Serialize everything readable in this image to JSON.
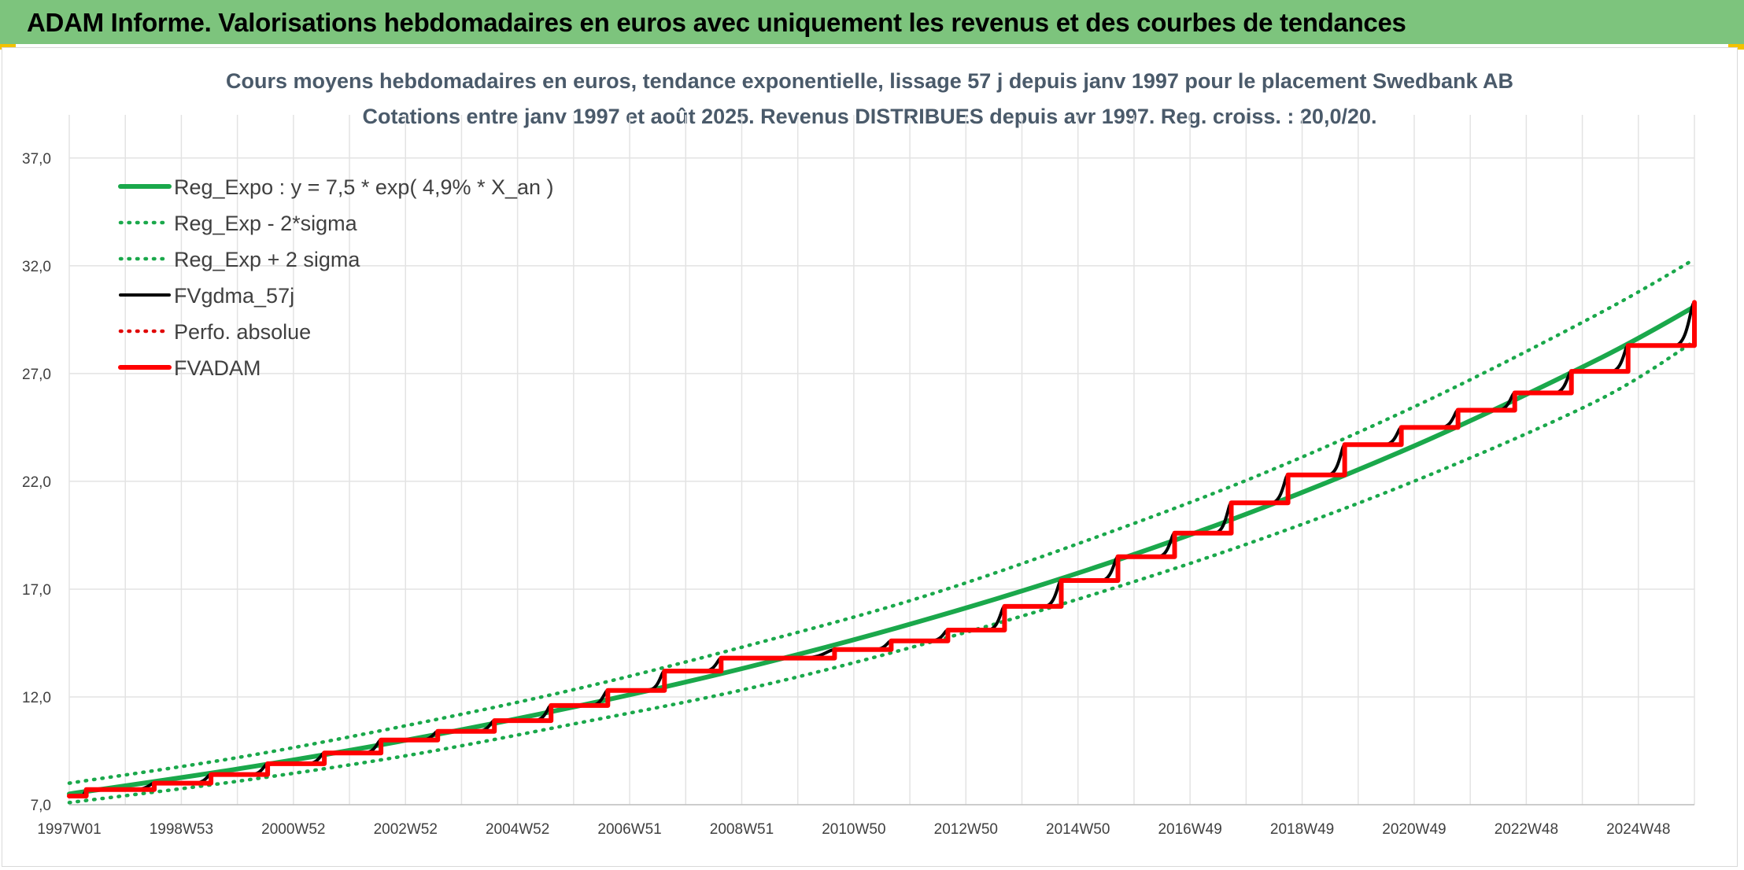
{
  "header": {
    "title": "ADAM Informe. Valorisations hebdomadaires en euros avec uniquement les revenus et des courbes de tendances"
  },
  "colors": {
    "header_bg": "#7dc47d",
    "trend": "#1aa84b",
    "fvgdma": "#000000",
    "fvadam": "#ff0000",
    "perfo": "#e00000",
    "grid": "#e3e3e3"
  },
  "chart_data": {
    "type": "line",
    "title": "Cours moyens hebdomadaires en euros, tendance exponentielle, lissage 57 j depuis janv 1997 pour le placement Swedbank AB",
    "subtitle": "Cotations entre janv 1997 et août 2025. Revenus DISTRIBUES depuis avr 1997. Reg. croiss. : 20,0/20.",
    "x_ticks": [
      "1997W01",
      "1998W53",
      "2000W52",
      "2002W52",
      "2004W52",
      "2006W51",
      "2008W51",
      "2010W50",
      "2012W50",
      "2014W50",
      "2016W49",
      "2018W49",
      "2020W49",
      "2022W48",
      "2024W48"
    ],
    "x_range": [
      1997.0,
      2025.67
    ],
    "ylim": [
      7.0,
      39.0
    ],
    "y_ticks": [
      "7,0",
      "12,0",
      "17,0",
      "22,0",
      "27,0",
      "32,0",
      "37,0"
    ],
    "grid": true,
    "legend_position": "top-left",
    "series": [
      {
        "name": "Reg_Expo : y = 7,5 * exp( 4,9% *  X_an )",
        "style": "solid-thick",
        "color": "#1aa84b",
        "x": [
          1997.0,
          2000.0,
          2003.0,
          2006.0,
          2009.0,
          2012.0,
          2015.0,
          2018.0,
          2021.0,
          2024.0,
          2025.67
        ],
        "y": [
          7.5,
          8.67,
          10.02,
          11.59,
          13.4,
          15.5,
          17.92,
          20.72,
          23.96,
          27.7,
          30.1
        ]
      },
      {
        "name": "Reg_Exp - 2*sigma",
        "style": "dotted",
        "color": "#1aa84b",
        "x": [
          1997.0,
          2000.0,
          2003.0,
          2006.0,
          2009.0,
          2012.0,
          2015.0,
          2018.0,
          2021.0,
          2024.0,
          2025.67
        ],
        "y": [
          7.1,
          8.1,
          9.3,
          10.8,
          12.4,
          14.4,
          16.7,
          19.3,
          22.3,
          25.8,
          28.5
        ]
      },
      {
        "name": "Reg_Exp + 2 sigma",
        "style": "dotted",
        "color": "#1aa84b",
        "x": [
          1997.0,
          2000.0,
          2003.0,
          2006.0,
          2009.0,
          2012.0,
          2015.0,
          2018.0,
          2021.0,
          2024.0,
          2025.67
        ],
        "y": [
          8.0,
          9.2,
          10.7,
          12.4,
          14.4,
          16.6,
          19.3,
          22.3,
          25.8,
          29.8,
          32.3
        ]
      },
      {
        "name": "FVgdma_57j",
        "style": "smooth-steps",
        "color": "#000000",
        "x": [
          1997.0,
          1997.3,
          1998.5,
          1999.5,
          2000.5,
          2001.5,
          2002.5,
          2003.5,
          2004.5,
          2005.5,
          2006.5,
          2007.5,
          2008.5,
          2010.5,
          2011.5,
          2012.5,
          2013.5,
          2014.5,
          2015.5,
          2016.5,
          2017.5,
          2018.5,
          2019.5,
          2020.5,
          2021.5,
          2022.5,
          2023.5,
          2024.5,
          2025.67
        ],
        "y": [
          7.4,
          7.7,
          8.0,
          8.4,
          8.9,
          9.4,
          10.0,
          10.4,
          10.9,
          11.6,
          12.3,
          13.2,
          13.8,
          14.2,
          14.6,
          15.1,
          16.2,
          17.4,
          18.5,
          19.6,
          21.0,
          22.3,
          23.7,
          24.5,
          25.3,
          26.1,
          27.1,
          28.3,
          30.3
        ]
      },
      {
        "name": "Perfo. absolue",
        "style": "dotted",
        "color": "#e00000",
        "x": [
          1997.0,
          1997.3,
          1998.5,
          1999.5,
          2000.5,
          2001.5,
          2002.5,
          2003.5,
          2004.5,
          2005.5,
          2006.5,
          2007.5,
          2008.5,
          2010.5,
          2011.5,
          2012.5,
          2013.5,
          2014.5,
          2015.5,
          2016.5,
          2017.5,
          2018.5,
          2019.5,
          2020.5,
          2021.5,
          2022.5,
          2023.5,
          2024.5,
          2025.67
        ],
        "y": [
          7.4,
          7.7,
          8.0,
          8.4,
          8.9,
          9.4,
          10.0,
          10.4,
          10.9,
          11.6,
          12.3,
          13.2,
          13.8,
          14.2,
          14.6,
          15.1,
          16.2,
          17.4,
          18.5,
          19.6,
          21.0,
          22.3,
          23.7,
          24.5,
          25.3,
          26.1,
          27.1,
          28.3,
          30.3
        ]
      },
      {
        "name": "FVADAM",
        "style": "steps-thick",
        "color": "#ff0000",
        "x": [
          1997.0,
          1997.3,
          1998.5,
          1999.5,
          2000.5,
          2001.5,
          2002.5,
          2003.5,
          2004.5,
          2005.5,
          2006.5,
          2007.5,
          2008.5,
          2010.5,
          2011.5,
          2012.5,
          2013.5,
          2014.5,
          2015.5,
          2016.5,
          2017.5,
          2018.5,
          2019.5,
          2020.5,
          2021.5,
          2022.5,
          2023.5,
          2024.5,
          2025.67
        ],
        "y": [
          7.4,
          7.7,
          8.0,
          8.4,
          8.9,
          9.4,
          10.0,
          10.4,
          10.9,
          11.6,
          12.3,
          13.2,
          13.8,
          14.2,
          14.6,
          15.1,
          16.2,
          17.4,
          18.5,
          19.6,
          21.0,
          22.3,
          23.7,
          24.5,
          25.3,
          26.1,
          27.1,
          28.3,
          30.3
        ]
      }
    ]
  }
}
